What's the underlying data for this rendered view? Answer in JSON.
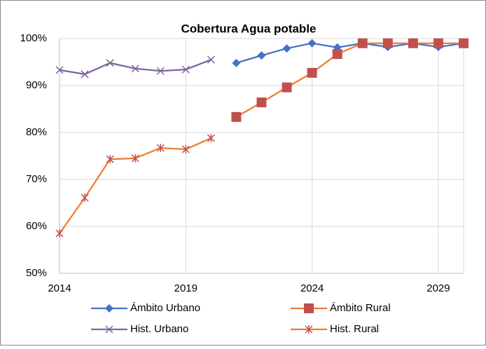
{
  "chart_data": {
    "type": "line",
    "title": "Cobertura Agua potable",
    "x": [
      2014,
      2015,
      2016,
      2017,
      2018,
      2019,
      2020,
      2021,
      2022,
      2023,
      2024,
      2025,
      2026,
      2027,
      2028,
      2029,
      2030
    ],
    "xlim": [
      2014,
      2030
    ],
    "xticks": [
      2014,
      2019,
      2024,
      2029
    ],
    "ylim": [
      50,
      100
    ],
    "yticks": [
      {
        "value": 50,
        "label": "50%"
      },
      {
        "value": 60,
        "label": "60%"
      },
      {
        "value": 70,
        "label": "70%"
      },
      {
        "value": 80,
        "label": "80%"
      },
      {
        "value": 90,
        "label": "90%"
      },
      {
        "value": 100,
        "label": "100%"
      }
    ],
    "grid": true,
    "legend": "bottom",
    "series": [
      {
        "name": "Ámbito Urbano",
        "color": "#4472c4",
        "marker": "diamond",
        "marker_color": "#4472c4",
        "values": [
          null,
          null,
          null,
          null,
          null,
          null,
          null,
          94.8,
          96.4,
          97.9,
          99.0,
          98.1,
          99.0,
          98.2,
          99.0,
          98.2,
          99.0
        ]
      },
      {
        "name": "Ámbito Rural",
        "color": "#ed7d31",
        "marker": "square",
        "marker_color": "#c0504d",
        "values": [
          null,
          null,
          null,
          null,
          null,
          null,
          null,
          83.3,
          86.4,
          89.6,
          92.7,
          96.7,
          99.0,
          99.0,
          99.0,
          99.0,
          99.0
        ]
      },
      {
        "name": "Hist. Urbano",
        "color": "#8064a2",
        "marker": "x",
        "marker_color": "#8064a2",
        "values": [
          93.3,
          92.4,
          94.8,
          93.6,
          93.1,
          93.4,
          95.5,
          null,
          null,
          null,
          null,
          null,
          null,
          null,
          null,
          null,
          null
        ]
      },
      {
        "name": "Hist. Rural",
        "color": "#ed7d31",
        "marker": "asterisk",
        "marker_color": "#c0504d",
        "values": [
          58.5,
          66.1,
          74.3,
          74.5,
          76.7,
          76.4,
          78.8,
          null,
          null,
          null,
          null,
          null,
          null,
          null,
          null,
          null,
          null
        ]
      }
    ]
  }
}
